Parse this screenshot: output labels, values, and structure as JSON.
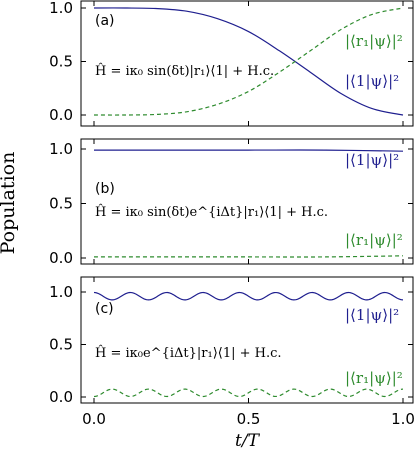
{
  "ylabel": "Population",
  "xlabel": "t/T",
  "colors": {
    "blue": "#1f1f8f",
    "green": "#2e8b2e"
  },
  "chart_data": [
    {
      "type": "line",
      "panel": "(a)",
      "hamiltonian": "Ĥ = iκ₀ sin(δt)|r₁⟩⟨1| + H.c.",
      "xlim": [
        0,
        1
      ],
      "ylim": [
        0,
        1
      ],
      "xticks": [
        "0.0",
        "0.5",
        "1.0"
      ],
      "yticks": [
        "0.0",
        "0.5",
        "1.0"
      ],
      "series": [
        {
          "name": "|⟨1|ψ⟩|²",
          "color": "#1f1f8f",
          "style": "solid",
          "x": [
            0,
            0.1,
            0.2,
            0.3,
            0.4,
            0.5,
            0.6,
            0.7,
            0.8,
            0.9,
            1.0
          ],
          "y": [
            1.0,
            1.0,
            0.995,
            0.97,
            0.9,
            0.78,
            0.6,
            0.4,
            0.2,
            0.06,
            0.0
          ]
        },
        {
          "name": "|⟨r₁|ψ⟩|²",
          "color": "#2e8b2e",
          "style": "dashed",
          "x": [
            0,
            0.1,
            0.2,
            0.3,
            0.4,
            0.5,
            0.6,
            0.7,
            0.8,
            0.9,
            1.0
          ],
          "y": [
            0.0,
            0.0,
            0.005,
            0.03,
            0.1,
            0.22,
            0.4,
            0.6,
            0.8,
            0.94,
            1.0
          ]
        }
      ]
    },
    {
      "type": "line",
      "panel": "(b)",
      "hamiltonian": "Ĥ = iκ₀ sin(δt)e^{iΔt}|r₁⟩⟨1| + H.c.",
      "xlim": [
        0,
        1
      ],
      "ylim": [
        0,
        1
      ],
      "xticks": [
        "0.0",
        "0.5",
        "1.0"
      ],
      "yticks": [
        "0.0",
        "0.5",
        "1.0"
      ],
      "series": [
        {
          "name": "|⟨1|ψ⟩|²",
          "color": "#1f1f8f",
          "style": "solid",
          "x": [
            0,
            0.25,
            0.5,
            0.75,
            1.0
          ],
          "y": [
            0.99,
            0.99,
            0.99,
            0.99,
            0.98
          ]
        },
        {
          "name": "|⟨r₁|ψ⟩|²",
          "color": "#2e8b2e",
          "style": "dashed",
          "x": [
            0,
            0.25,
            0.5,
            0.75,
            1.0
          ],
          "y": [
            0.01,
            0.01,
            0.01,
            0.01,
            0.02
          ]
        }
      ]
    },
    {
      "type": "line",
      "panel": "(c)",
      "hamiltonian": "Ĥ = iκ₀e^{iΔt}|r₁⟩⟨1| + H.c.",
      "xlim": [
        0,
        1
      ],
      "ylim": [
        0,
        1
      ],
      "xticks": [
        "0.0",
        "0.5",
        "1.0"
      ],
      "yticks": [
        "0.0",
        "0.5",
        "1.0"
      ],
      "series": [
        {
          "name": "|⟨1|ψ⟩|²",
          "color": "#1f1f8f",
          "style": "solid",
          "function": "oscillation",
          "mean": 0.96,
          "amplitude": 0.035,
          "cycles": 8.5
        },
        {
          "name": "|⟨r₁|ψ⟩|²",
          "color": "#2e8b2e",
          "style": "dashed",
          "function": "oscillation",
          "mean": 0.04,
          "amplitude": -0.035,
          "cycles": 8.5
        }
      ]
    }
  ]
}
